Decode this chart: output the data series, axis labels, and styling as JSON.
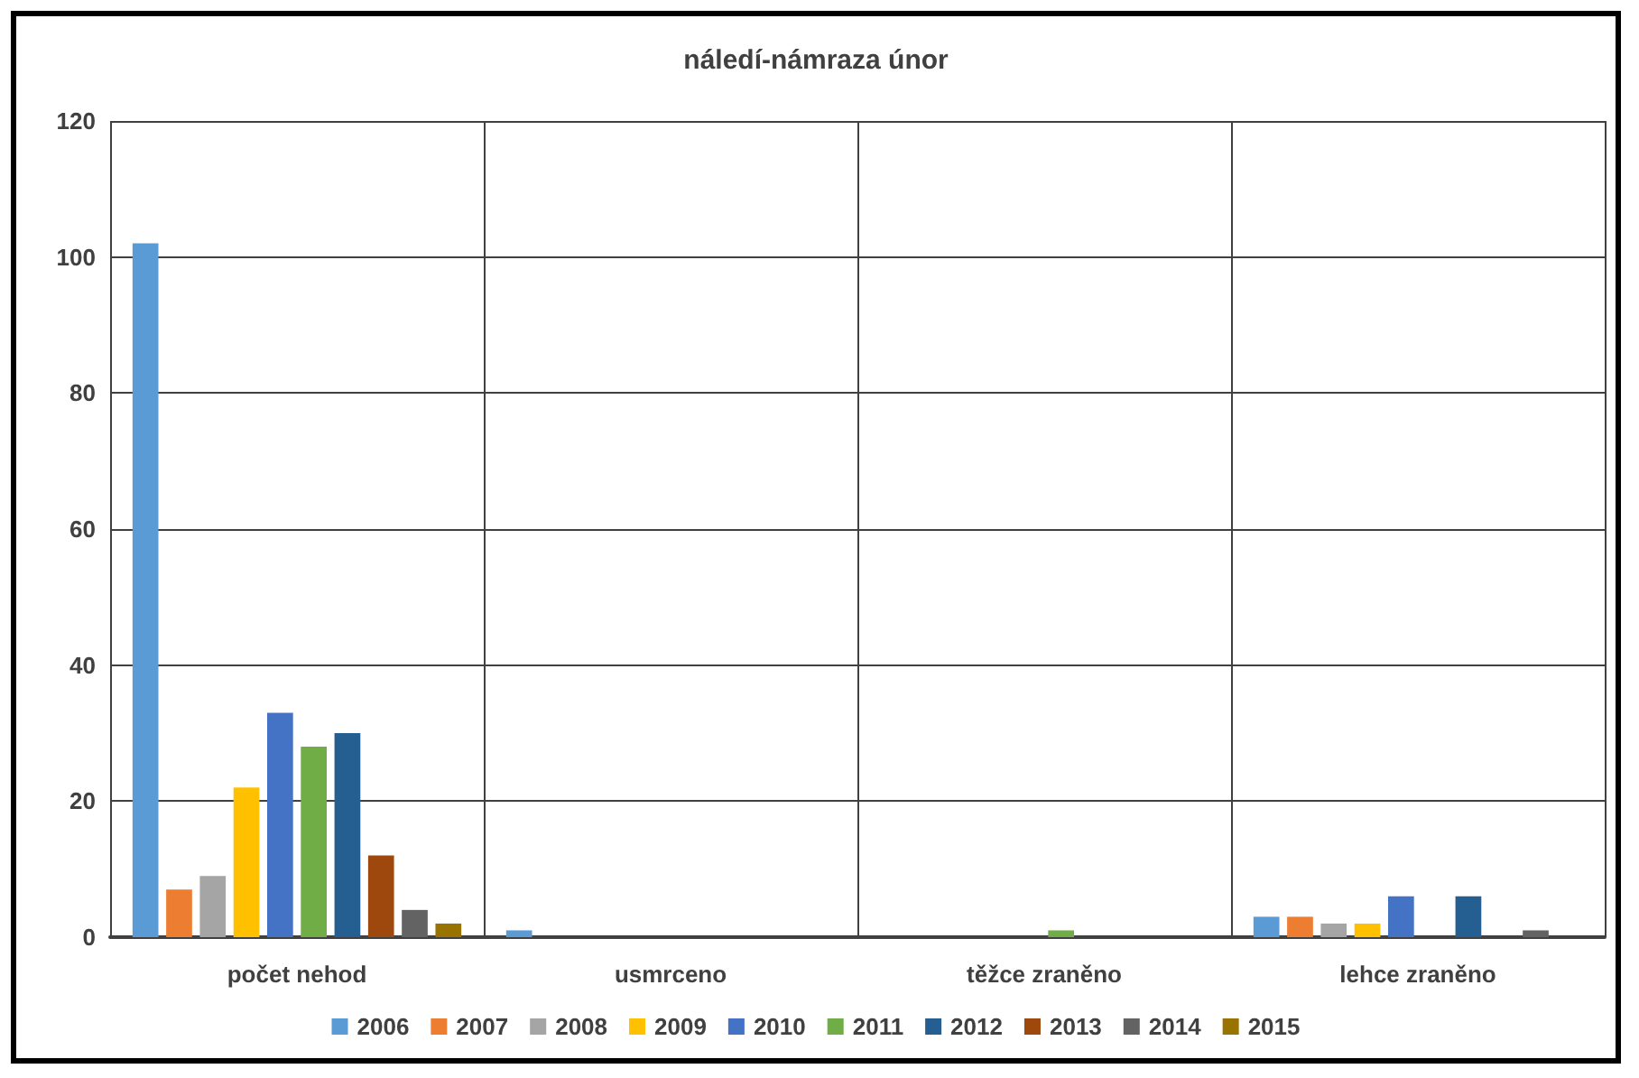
{
  "chart_data": {
    "type": "bar",
    "title": "náledí-námraza únor",
    "categories": [
      "počet nehod",
      "usmrceno",
      "těžce zraněno",
      "lehce zraněno"
    ],
    "series": [
      {
        "name": "2006",
        "color": "#5b9bd5",
        "values": [
          102,
          1,
          0,
          3
        ]
      },
      {
        "name": "2007",
        "color": "#ed7d31",
        "values": [
          7,
          0,
          0,
          3
        ]
      },
      {
        "name": "2008",
        "color": "#a5a5a5",
        "values": [
          9,
          0,
          0,
          2
        ]
      },
      {
        "name": "2009",
        "color": "#ffc000",
        "values": [
          22,
          0,
          0,
          2
        ]
      },
      {
        "name": "2010",
        "color": "#4472c4",
        "values": [
          33,
          0,
          0,
          6
        ]
      },
      {
        "name": "2011",
        "color": "#70ad47",
        "values": [
          28,
          0,
          1,
          0
        ]
      },
      {
        "name": "2012",
        "color": "#255e91",
        "values": [
          30,
          0,
          0,
          6
        ]
      },
      {
        "name": "2013",
        "color": "#9e480e",
        "values": [
          12,
          0,
          0,
          0
        ]
      },
      {
        "name": "2014",
        "color": "#636363",
        "values": [
          4,
          0,
          0,
          1
        ]
      },
      {
        "name": "2015",
        "color": "#997300",
        "values": [
          2,
          0,
          0,
          0
        ]
      }
    ],
    "ylim": [
      0,
      120
    ],
    "yticks": [
      0,
      20,
      40,
      60,
      80,
      100,
      120
    ],
    "grid": true,
    "legend": "bottom"
  }
}
